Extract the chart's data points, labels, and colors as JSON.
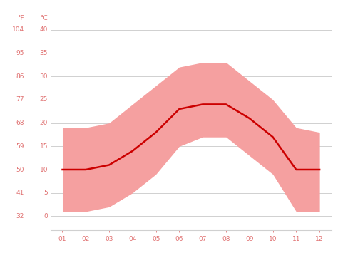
{
  "months": [
    1,
    2,
    3,
    4,
    5,
    6,
    7,
    8,
    9,
    10,
    11,
    12
  ],
  "month_labels": [
    "01",
    "02",
    "03",
    "04",
    "05",
    "06",
    "07",
    "08",
    "09",
    "10",
    "11",
    "12"
  ],
  "avg_temp_c": [
    10,
    10,
    11,
    14,
    18,
    23,
    24,
    24,
    21,
    17,
    10,
    10
  ],
  "temp_max_c": [
    19,
    19,
    20,
    24,
    28,
    32,
    33,
    33,
    29,
    25,
    19,
    18
  ],
  "temp_min_c": [
    1,
    1,
    2,
    5,
    9,
    15,
    17,
    17,
    13,
    9,
    1,
    1
  ],
  "yticks_c": [
    0,
    5,
    10,
    15,
    20,
    25,
    30,
    35,
    40
  ],
  "yticks_f": [
    32,
    41,
    50,
    59,
    68,
    77,
    86,
    95,
    104
  ],
  "ylim_c": [
    -3,
    41.5
  ],
  "xlim": [
    0.5,
    12.5
  ],
  "line_color": "#cc0000",
  "fill_color": "#f5a0a0",
  "bg_color": "#ffffff",
  "grid_color": "#d0d0d0",
  "label_color": "#e07070",
  "tick_fontsize": 6.5,
  "header_fontsize": 6.5
}
